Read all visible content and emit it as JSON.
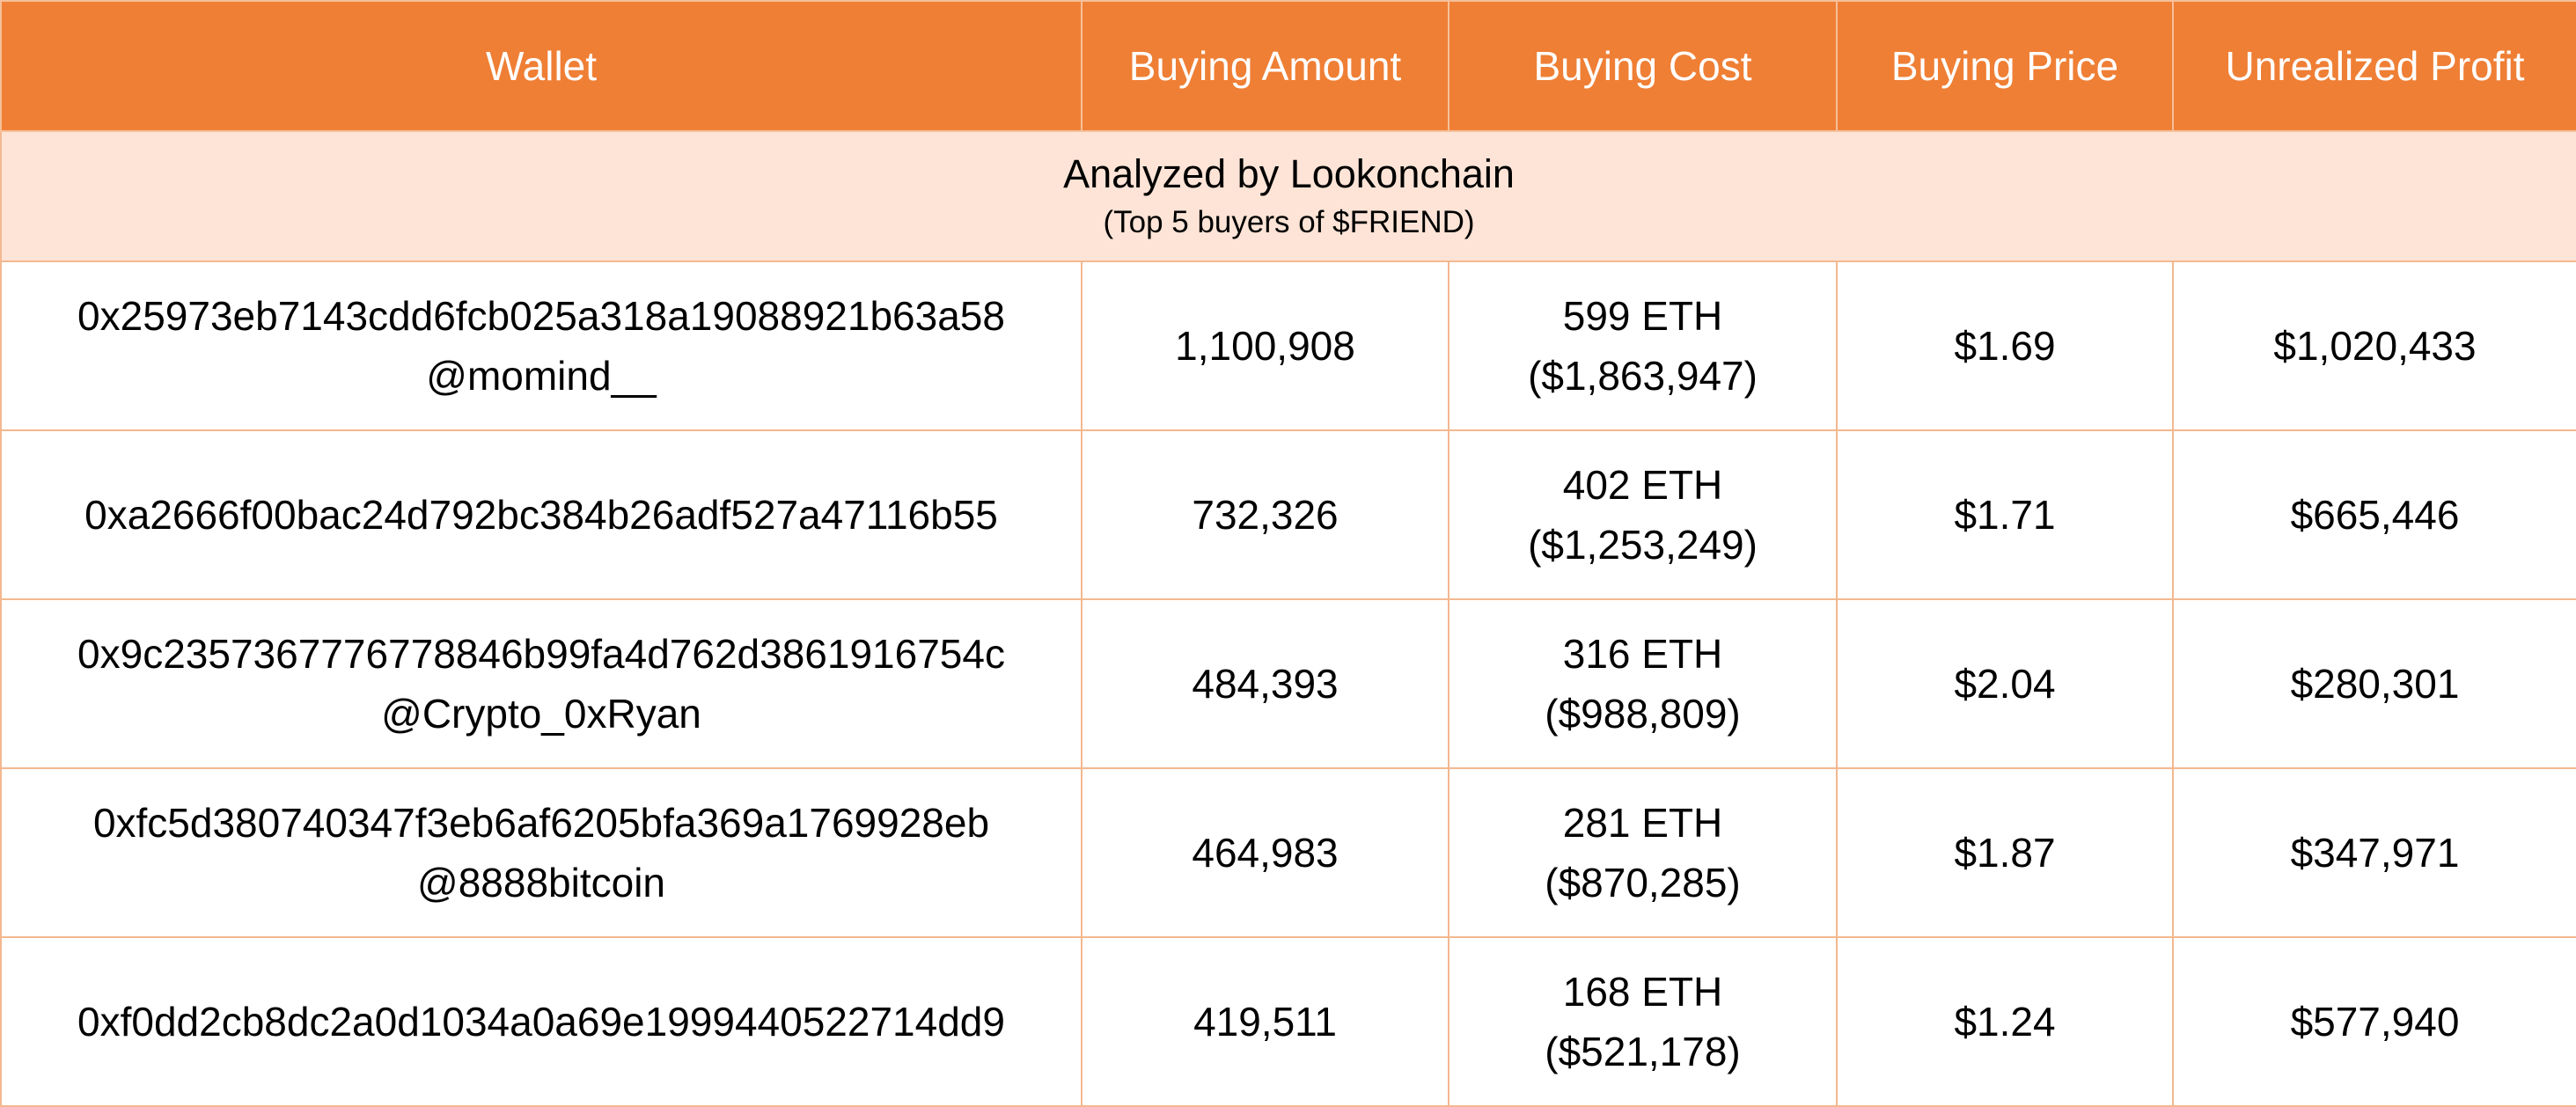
{
  "chart_data": {
    "type": "table",
    "columns": [
      "Wallet",
      "Buying Amount",
      "Buying Cost",
      "Buying Price",
      "Unrealized Profit"
    ],
    "subheader": {
      "title": "Analyzed by Lookonchain",
      "note": "(Top 5 buyers of $FRIEND)"
    },
    "rows": [
      {
        "wallet": "0x25973eb7143cdd6fcb025a318a19088921b63a58",
        "handle": "@momind__",
        "amount": "1,100,908",
        "cost_eth": "599 ETH",
        "cost_usd": "($1,863,947)",
        "price": "$1.69",
        "profit": "$1,020,433"
      },
      {
        "wallet": "0xa2666f00bac24d792bc384b26adf527a47116b55",
        "handle": "",
        "amount": "732,326",
        "cost_eth": "402 ETH",
        "cost_usd": "($1,253,249)",
        "price": "$1.71",
        "profit": "$665,446"
      },
      {
        "wallet": "0x9c2357367776778846b99fa4d762d3861916754c",
        "handle": "@Crypto_0xRyan",
        "amount": "484,393",
        "cost_eth": "316 ETH",
        "cost_usd": "($988,809)",
        "price": "$2.04",
        "profit": "$280,301"
      },
      {
        "wallet": "0xfc5d380740347f3eb6af6205bfa369a1769928eb",
        "handle": "@8888bitcoin",
        "amount": "464,983",
        "cost_eth": "281 ETH",
        "cost_usd": "($870,285)",
        "price": "$1.87",
        "profit": "$347,971"
      },
      {
        "wallet": "0xf0dd2cb8dc2a0d1034a0a69e1999440522714dd9",
        "handle": "",
        "amount": "419,511",
        "cost_eth": "168 ETH",
        "cost_usd": "($521,178)",
        "price": "$1.24",
        "profit": "$577,940"
      }
    ]
  },
  "colors": {
    "header_bg": "#ef7f35",
    "header_text": "#ffffff",
    "subheader_bg": "#fde4d6",
    "border": "#f3b88f"
  }
}
